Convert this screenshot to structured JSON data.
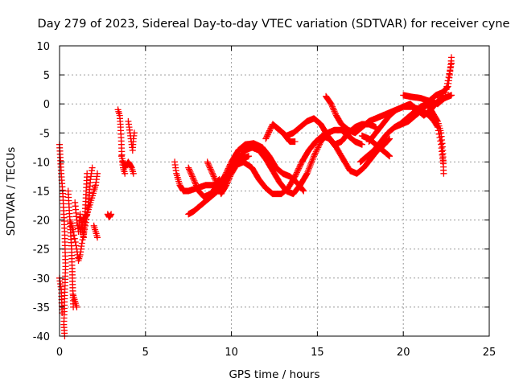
{
  "chart_data": {
    "type": "scatter",
    "title": "Day 279 of 2023, Sidereal Day-to-day VTEC variation (SDTVAR) for receiver cyne",
    "xlabel": "GPS time / hours",
    "ylabel": "SDTVAR / TECUs",
    "xlim": [
      0,
      25
    ],
    "ylim": [
      -40,
      10
    ],
    "xticks": [
      0,
      5,
      10,
      15,
      20,
      25
    ],
    "yticks": [
      -40,
      -35,
      -30,
      -25,
      -20,
      -15,
      -10,
      -5,
      0,
      5,
      10
    ],
    "grid": true,
    "marker": "plus",
    "color": "#ff0000",
    "tracks": [
      [
        [
          0.0,
          -7
        ],
        [
          0.1,
          -12
        ],
        [
          0.2,
          -16
        ],
        [
          0.3,
          -22
        ],
        [
          0.35,
          -28
        ],
        [
          0.3,
          -33
        ],
        [
          0.25,
          -38
        ],
        [
          0.3,
          -40
        ]
      ],
      [
        [
          0.0,
          -30
        ],
        [
          0.1,
          -32
        ],
        [
          0.15,
          -36
        ]
      ],
      [
        [
          0.5,
          -15
        ],
        [
          0.6,
          -20
        ],
        [
          0.7,
          -25
        ],
        [
          0.75,
          -30
        ],
        [
          0.8,
          -35
        ]
      ],
      [
        [
          0.6,
          -20
        ],
        [
          0.8,
          -22
        ],
        [
          1.0,
          -25
        ],
        [
          1.1,
          -27
        ],
        [
          1.2,
          -26
        ],
        [
          1.3,
          -24
        ],
        [
          1.5,
          -21
        ],
        [
          1.7,
          -17
        ],
        [
          1.8,
          -13
        ],
        [
          1.9,
          -11
        ]
      ],
      [
        [
          0.9,
          -17
        ],
        [
          1.0,
          -20
        ],
        [
          1.1,
          -22
        ],
        [
          1.2,
          -19
        ],
        [
          1.3,
          -21
        ],
        [
          1.4,
          -23
        ],
        [
          1.5,
          -18
        ],
        [
          1.6,
          -12
        ]
      ],
      [
        [
          1.2,
          -22
        ],
        [
          1.4,
          -20
        ],
        [
          1.6,
          -19
        ],
        [
          1.8,
          -17
        ],
        [
          2.0,
          -15
        ],
        [
          2.1,
          -14
        ],
        [
          2.2,
          -12
        ]
      ],
      [
        [
          0.8,
          -33
        ],
        [
          0.9,
          -34
        ],
        [
          1.0,
          -35
        ]
      ],
      [
        [
          2.0,
          -21
        ],
        [
          2.1,
          -22
        ],
        [
          2.2,
          -23
        ]
      ],
      [
        [
          2.8,
          -19
        ],
        [
          2.9,
          -19.5
        ],
        [
          3.0,
          -19
        ]
      ],
      [
        [
          3.4,
          -1
        ],
        [
          3.5,
          -2
        ],
        [
          3.55,
          -4
        ],
        [
          3.6,
          -7
        ],
        [
          3.65,
          -10
        ],
        [
          3.7,
          -11
        ],
        [
          3.8,
          -12
        ]
      ],
      [
        [
          3.6,
          -9
        ],
        [
          3.8,
          -11
        ],
        [
          4.0,
          -10
        ],
        [
          4.2,
          -11
        ],
        [
          4.3,
          -12
        ]
      ],
      [
        [
          4.0,
          -3
        ],
        [
          4.1,
          -5
        ],
        [
          4.2,
          -7
        ],
        [
          4.25,
          -8
        ],
        [
          4.3,
          -6
        ],
        [
          4.35,
          -5
        ]
      ],
      [
        [
          6.7,
          -10
        ],
        [
          6.8,
          -12
        ],
        [
          7.0,
          -14
        ],
        [
          7.2,
          -15
        ],
        [
          7.5,
          -15
        ],
        [
          8.0,
          -14.5
        ],
        [
          8.5,
          -14
        ],
        [
          9.0,
          -14
        ],
        [
          9.3,
          -13
        ]
      ],
      [
        [
          7.5,
          -19
        ],
        [
          7.8,
          -18.5
        ],
        [
          8.2,
          -17.5
        ],
        [
          8.6,
          -16.5
        ],
        [
          9.0,
          -15.5
        ],
        [
          9.4,
          -14.5
        ],
        [
          9.8,
          -12.5
        ],
        [
          10.2,
          -10.5
        ],
        [
          10.6,
          -9.5
        ],
        [
          11.0,
          -9
        ]
      ],
      [
        [
          7.5,
          -11
        ],
        [
          7.8,
          -13
        ],
        [
          8.1,
          -15
        ],
        [
          8.4,
          -16
        ],
        [
          8.8,
          -15.5
        ],
        [
          9.2,
          -14
        ],
        [
          9.6,
          -12.5
        ],
        [
          10.0,
          -10
        ],
        [
          10.4,
          -8
        ],
        [
          10.8,
          -7
        ],
        [
          11.3,
          -6.8
        ],
        [
          11.8,
          -7.5
        ],
        [
          12.2,
          -9
        ],
        [
          12.6,
          -11
        ],
        [
          13.0,
          -12
        ],
        [
          13.4,
          -12.5
        ],
        [
          13.8,
          -13.5
        ],
        [
          14.2,
          -15
        ]
      ],
      [
        [
          8.6,
          -10
        ],
        [
          8.9,
          -12
        ],
        [
          9.2,
          -14
        ],
        [
          9.4,
          -15.5
        ],
        [
          9.7,
          -14
        ],
        [
          10.0,
          -12
        ],
        [
          10.3,
          -10.5
        ],
        [
          10.7,
          -10
        ],
        [
          11.2,
          -11
        ],
        [
          11.6,
          -13
        ],
        [
          12.0,
          -14.5
        ],
        [
          12.4,
          -15.5
        ],
        [
          12.9,
          -15.5
        ],
        [
          13.3,
          -14.5
        ],
        [
          13.7,
          -12.5
        ],
        [
          14.1,
          -10
        ],
        [
          14.5,
          -8
        ],
        [
          14.9,
          -6.5
        ],
        [
          15.3,
          -5.5
        ],
        [
          15.7,
          -6
        ],
        [
          16.1,
          -7.5
        ],
        [
          16.5,
          -9.5
        ],
        [
          16.9,
          -11.5
        ],
        [
          17.3,
          -12
        ],
        [
          17.7,
          -11
        ],
        [
          18.1,
          -9.5
        ],
        [
          18.5,
          -8
        ],
        [
          18.9,
          -7
        ],
        [
          19.2,
          -6
        ]
      ],
      [
        [
          10.0,
          -11
        ],
        [
          10.4,
          -9.5
        ],
        [
          10.8,
          -8
        ],
        [
          11.2,
          -7.5
        ],
        [
          11.6,
          -8
        ],
        [
          12.0,
          -9.5
        ],
        [
          12.4,
          -11.5
        ],
        [
          12.8,
          -13.5
        ],
        [
          13.2,
          -15
        ],
        [
          13.6,
          -15.5
        ],
        [
          14.0,
          -14
        ],
        [
          14.4,
          -12
        ],
        [
          14.8,
          -9
        ],
        [
          15.2,
          -6.5
        ],
        [
          15.6,
          -5
        ],
        [
          16.0,
          -4.5
        ],
        [
          16.4,
          -4.5
        ],
        [
          16.8,
          -5.5
        ],
        [
          17.2,
          -6.5
        ],
        [
          17.6,
          -7
        ]
      ],
      [
        [
          12.0,
          -6
        ],
        [
          12.4,
          -3.5
        ],
        [
          12.8,
          -4.5
        ],
        [
          13.2,
          -5.5
        ],
        [
          13.6,
          -5
        ],
        [
          14.0,
          -4
        ],
        [
          14.4,
          -3
        ],
        [
          14.8,
          -2.5
        ],
        [
          15.2,
          -3.5
        ],
        [
          15.6,
          -5.5
        ],
        [
          16.0,
          -7
        ],
        [
          16.4,
          -6.5
        ],
        [
          16.8,
          -5
        ],
        [
          17.2,
          -4
        ],
        [
          17.6,
          -3.5
        ],
        [
          18.0,
          -3.5
        ],
        [
          18.4,
          -4
        ]
      ],
      [
        [
          12.6,
          -4
        ],
        [
          13.0,
          -5
        ],
        [
          13.4,
          -6.5
        ],
        [
          13.7,
          -6.5
        ]
      ],
      [
        [
          15.5,
          1.3
        ],
        [
          15.8,
          0
        ],
        [
          16.1,
          -2
        ],
        [
          16.4,
          -3.5
        ],
        [
          16.8,
          -4.5
        ],
        [
          17.2,
          -5
        ],
        [
          17.6,
          -4
        ],
        [
          18.0,
          -3
        ],
        [
          18.4,
          -2.5
        ],
        [
          18.8,
          -2
        ],
        [
          19.2,
          -1.5
        ],
        [
          19.6,
          -1
        ],
        [
          20.0,
          -0.5
        ],
        [
          20.5,
          -0.5
        ],
        [
          21.0,
          -1
        ],
        [
          21.5,
          -2
        ],
        [
          21.8,
          -3
        ],
        [
          22.0,
          -4
        ],
        [
          22.2,
          -7
        ],
        [
          22.3,
          -10
        ]
      ],
      [
        [
          17.6,
          -5.5
        ],
        [
          18.0,
          -6
        ],
        [
          18.4,
          -7
        ],
        [
          18.8,
          -8
        ],
        [
          19.2,
          -9
        ]
      ],
      [
        [
          17.5,
          -10
        ],
        [
          17.9,
          -9
        ],
        [
          18.3,
          -8
        ],
        [
          18.7,
          -6.5
        ],
        [
          19.1,
          -5
        ],
        [
          19.5,
          -4
        ],
        [
          19.9,
          -3.5
        ],
        [
          20.3,
          -3
        ],
        [
          20.7,
          -2
        ],
        [
          21.1,
          -1
        ],
        [
          21.5,
          0.5
        ],
        [
          21.9,
          1.5
        ],
        [
          22.3,
          2
        ],
        [
          22.6,
          3
        ],
        [
          22.7,
          5
        ],
        [
          22.8,
          8
        ]
      ],
      [
        [
          18.0,
          -6.5
        ],
        [
          18.4,
          -5
        ],
        [
          18.8,
          -3.5
        ],
        [
          19.2,
          -2
        ],
        [
          19.6,
          -1
        ],
        [
          20.0,
          -0.5
        ],
        [
          20.4,
          0
        ],
        [
          20.8,
          -1
        ],
        [
          21.2,
          -2
        ],
        [
          21.6,
          -1
        ],
        [
          22.0,
          0.5
        ],
        [
          22.4,
          1
        ],
        [
          22.8,
          1.5
        ]
      ],
      [
        [
          19.5,
          -4
        ],
        [
          19.8,
          -3.5
        ],
        [
          20.2,
          -2.5
        ],
        [
          20.6,
          -1.5
        ],
        [
          21.0,
          -0.5
        ],
        [
          21.4,
          0
        ],
        [
          21.7,
          -1.5
        ],
        [
          22.0,
          -3
        ],
        [
          22.2,
          -5
        ],
        [
          22.3,
          -8
        ],
        [
          22.35,
          -12
        ]
      ],
      [
        [
          20.0,
          1.5
        ],
        [
          20.5,
          1.2
        ],
        [
          21.0,
          1
        ],
        [
          21.5,
          0.5
        ],
        [
          22.0,
          0
        ],
        [
          22.4,
          1
        ],
        [
          22.6,
          4
        ],
        [
          22.8,
          7
        ]
      ]
    ]
  }
}
